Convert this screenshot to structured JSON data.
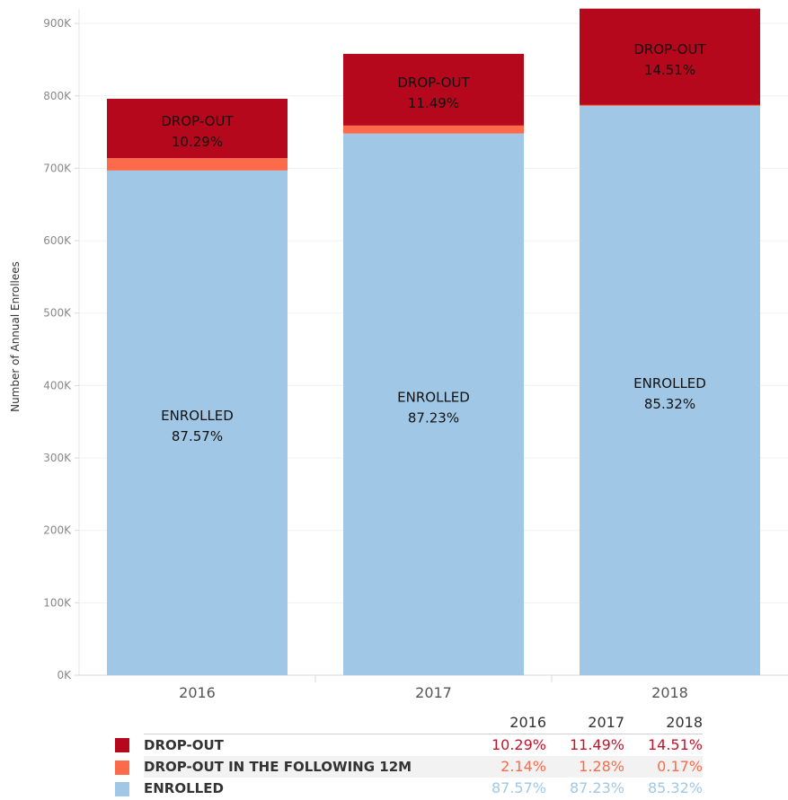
{
  "chart_data": {
    "type": "bar",
    "stacked": true,
    "categories": [
      "2016",
      "2017",
      "2018"
    ],
    "ylabel": "Number of Annual Enrollees",
    "ylim": [
      0,
      920000
    ],
    "yticks": [
      0,
      100000,
      200000,
      300000,
      400000,
      500000,
      600000,
      700000,
      800000,
      900000
    ],
    "ytick_labels": [
      "0K",
      "100K",
      "200K",
      "300K",
      "400K",
      "500K",
      "600K",
      "700K",
      "800K",
      "900K"
    ],
    "grid": true,
    "series": [
      {
        "name": "ENROLLED",
        "bar_label": "ENROLLED",
        "color": "#a0c8e6",
        "text_color": "#a0c8e6",
        "values": [
          697000,
          748000,
          786000
        ],
        "percent_labels": [
          "87.57%",
          "87.23%",
          "85.32%"
        ]
      },
      {
        "name": "DROP-OUT IN THE FOLLOWING 12M",
        "bar_label": "",
        "color": "#fb6a4a",
        "text_color": "#fb6a4a",
        "values": [
          17000,
          11000,
          1500
        ],
        "percent_labels": [
          "2.14%",
          "1.28%",
          "0.17%"
        ]
      },
      {
        "name": "DROP-OUT",
        "bar_label": "DROP-OUT",
        "color": "#b5081c",
        "text_color": "#c4132a",
        "values": [
          82000,
          99000,
          133000
        ],
        "percent_labels": [
          "10.29%",
          "11.49%",
          "14.51%"
        ]
      }
    ],
    "legend_placement": "bottom"
  },
  "legend": {
    "years": [
      "2016",
      "2017",
      "2018"
    ],
    "rows": [
      {
        "label": "DROP-OUT",
        "series_index": 2
      },
      {
        "label": "DROP-OUT IN THE FOLLOWING 12M",
        "series_index": 1
      },
      {
        "label": "ENROLLED",
        "series_index": 0
      }
    ]
  }
}
